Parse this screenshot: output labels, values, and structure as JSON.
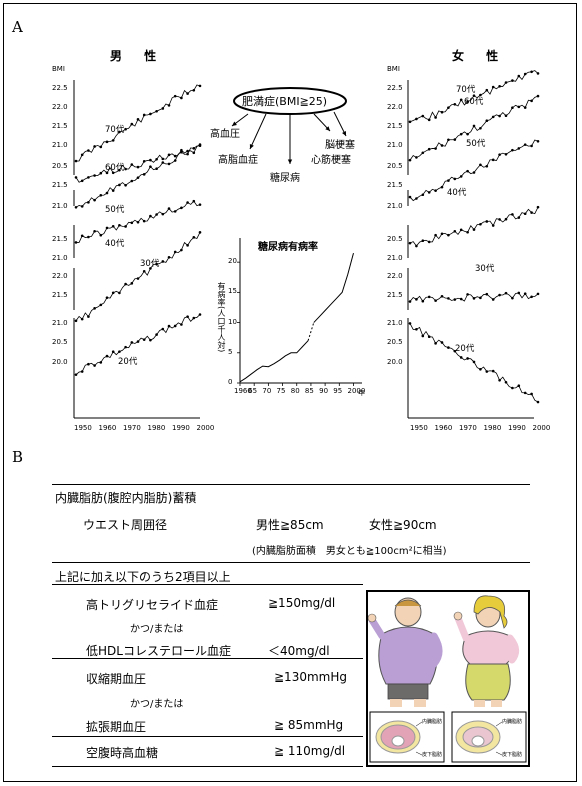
{
  "panel_a_label": "A",
  "panel_b_label": "B",
  "male": {
    "title": "男 性",
    "bmi_label": "BMI",
    "ticks": [
      "22.5",
      "22.0",
      "21.5",
      "21.0",
      "20.5",
      "21.5",
      "21.0",
      "21.5",
      "21.0",
      "22.0",
      "21.5",
      "21.0",
      "20.5",
      "20.0"
    ],
    "ages": [
      "70代",
      "60代",
      "50代",
      "40代",
      "30代",
      "20代"
    ],
    "years": [
      "1950",
      "1960",
      "1970",
      "1980",
      "1990",
      "2000"
    ]
  },
  "female": {
    "title": "女 性",
    "bmi_label": "BMI",
    "ticks": [
      "22.5",
      "22.0",
      "21.5",
      "21.0",
      "20.5",
      "21.5",
      "21.0",
      "20.5",
      "21.0",
      "22.0",
      "21.5",
      "21.0",
      "20.5",
      "20.0"
    ],
    "ages": [
      "70代",
      "60代",
      "50代",
      "40代",
      "30代",
      "20代"
    ],
    "years": [
      "1950",
      "1960",
      "1970",
      "1980",
      "1990",
      "2000"
    ]
  },
  "center": {
    "obesity": "肥満症(BMI≧25)",
    "complications": [
      "高血圧",
      "高脂血症",
      "糖尿病",
      "心筋梗塞",
      "脳梗塞"
    ]
  },
  "chart_data": {
    "type": "line",
    "title": "糖尿病有病率",
    "ylabel": "有病率(人口千人対)",
    "xlabel": "年",
    "y_ticks": [
      "0",
      "5",
      "10",
      "15",
      "20"
    ],
    "x_ticks": [
      "1960",
      "65",
      "70",
      "75",
      "80",
      "85",
      "90",
      "95",
      "2000"
    ],
    "ylim": [
      0,
      24
    ],
    "xlim": [
      1960,
      2003
    ],
    "x": [
      1960,
      1962,
      1964,
      1966,
      1968,
      1970,
      1972,
      1974,
      1976,
      1978,
      1980,
      1982,
      1984,
      1986,
      1988,
      1990,
      1992,
      1994,
      1996,
      1998,
      2000
    ],
    "values": [
      0.2,
      0.8,
      1.5,
      2.2,
      2.8,
      2.7,
      3.2,
      3.8,
      4.5,
      5.0,
      5.0,
      6.0,
      7.0,
      10.0,
      11.0,
      12.0,
      13.0,
      14.0,
      15.0,
      18.0,
      21.5
    ]
  },
  "criteria": {
    "main": "内臓脂肪(腹腔内脂肪)蓄積",
    "waist_label": "ウエスト周囲径",
    "male_waist": "男性≧85cm",
    "female_waist": "女性≧90cm",
    "area_note": "(内臓脂肪面積　男女とも≧100cm²に相当)",
    "additional": "上記に加え以下のうち2項目以上",
    "items": [
      {
        "label": "高トリグリセライド血症",
        "value": "≧150mg/dl"
      },
      {
        "label": "かつ/または",
        "value": ""
      },
      {
        "label": "低HDLコレステロール血症",
        "value": "＜40mg/dl"
      },
      {
        "label": "収縮期血圧",
        "value": "≧130mmHg"
      },
      {
        "label": "かつ/または",
        "value": ""
      },
      {
        "label": "拡張期血圧",
        "value": "≧ 85mmHg"
      },
      {
        "label": "空腹時高血糖",
        "value": "≧ 110mg/dl"
      }
    ]
  },
  "illustration": {
    "male_labels": [
      "内臓脂肪",
      "皮下脂肪"
    ],
    "female_labels": [
      "内臓脂肪",
      "皮下脂肪"
    ]
  }
}
